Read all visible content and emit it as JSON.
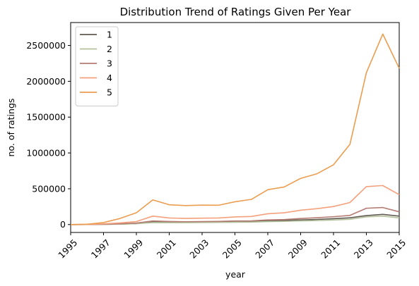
{
  "chart_data": {
    "type": "line",
    "title": "Distribution Trend of Ratings Given Per Year",
    "xlabel": "year",
    "ylabel": "no. of ratings",
    "xlim": [
      1995,
      2015
    ],
    "ylim": [
      -110000,
      2820000
    ],
    "x_ticks": [
      "1995",
      "1997",
      "1999",
      "2001",
      "2003",
      "2005",
      "2007",
      "2009",
      "2011",
      "2013",
      "2015"
    ],
    "y_ticks": [
      "0",
      "500000",
      "1000000",
      "1500000",
      "2000000",
      "2500000"
    ],
    "grid": false,
    "legend_position": "upper-left",
    "x": [
      1995,
      1996,
      1997,
      1998,
      1999,
      2000,
      2001,
      2002,
      2003,
      2004,
      2005,
      2006,
      2007,
      2008,
      2009,
      2010,
      2011,
      2012,
      2013,
      2014,
      2015
    ],
    "series": [
      {
        "name": "1",
        "color": "#615a51",
        "values": [
          0,
          500,
          3000,
          7000,
          14000,
          40000,
          36000,
          35000,
          37000,
          38000,
          43000,
          43000,
          52000,
          58000,
          65000,
          72000,
          82000,
          95000,
          125000,
          143000,
          118000
        ]
      },
      {
        "name": "2",
        "color": "#b4c29c",
        "values": [
          0,
          500,
          2500,
          6000,
          12000,
          28000,
          27000,
          27000,
          29000,
          30000,
          33000,
          34000,
          42000,
          45000,
          52000,
          56000,
          64000,
          74000,
          108000,
          118000,
          93000
        ]
      },
      {
        "name": "3",
        "color": "#b47b72",
        "values": [
          0,
          1000,
          5000,
          11000,
          21000,
          50000,
          43000,
          40000,
          42000,
          44000,
          50000,
          52000,
          65000,
          70000,
          85000,
          96000,
          110000,
          128000,
          228000,
          238000,
          178000
        ]
      },
      {
        "name": "4",
        "color": "#f5a07d",
        "values": [
          0,
          2000,
          10000,
          23000,
          42000,
          118000,
          92000,
          86000,
          90000,
          92000,
          107000,
          113000,
          151000,
          165000,
          200000,
          222000,
          252000,
          308000,
          530000,
          545000,
          418000
        ]
      },
      {
        "name": "5",
        "color": "#eb9d50",
        "values": [
          0,
          5000,
          28000,
          85000,
          165000,
          345000,
          277000,
          265000,
          272000,
          270000,
          318000,
          352000,
          487000,
          525000,
          645000,
          710000,
          835000,
          1120000,
          2120000,
          2660000,
          2180000
        ]
      }
    ]
  }
}
